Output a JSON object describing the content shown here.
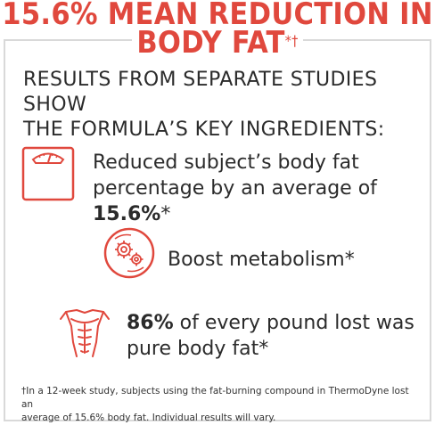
{
  "headline": {
    "line1": "15.6% MEAN REDUCTION IN",
    "line2": "BODY FAT",
    "line2_mark": "*†"
  },
  "subtitle": {
    "line1": "RESULTS FROM SEPARATE STUDIES SHOW",
    "line2": "THE FORMULA’S KEY INGREDIENTS:"
  },
  "benefits": [
    {
      "icon": "scale-icon",
      "line1": "Reduced subject’s body fat",
      "line2_prefix": "percentage by an average of ",
      "highlight": "15.6%",
      "suffix": "*"
    },
    {
      "icon": "gear-icon",
      "text": "Boost metabolism*"
    },
    {
      "icon": "torso-icon",
      "highlight": "86%",
      "line1_rest": " of every pound lost was",
      "line2": "pure body fat*"
    }
  ],
  "footnote": {
    "line1": "†In a 12-week study, subjects using the fat-burning compound in ThermoDyne lost an",
    "line2": "average of 15.6% body fat. Individual results will vary."
  },
  "colors": {
    "accent": "#e0483d",
    "text": "#2b2b2b",
    "border": "#d9d9d9"
  }
}
